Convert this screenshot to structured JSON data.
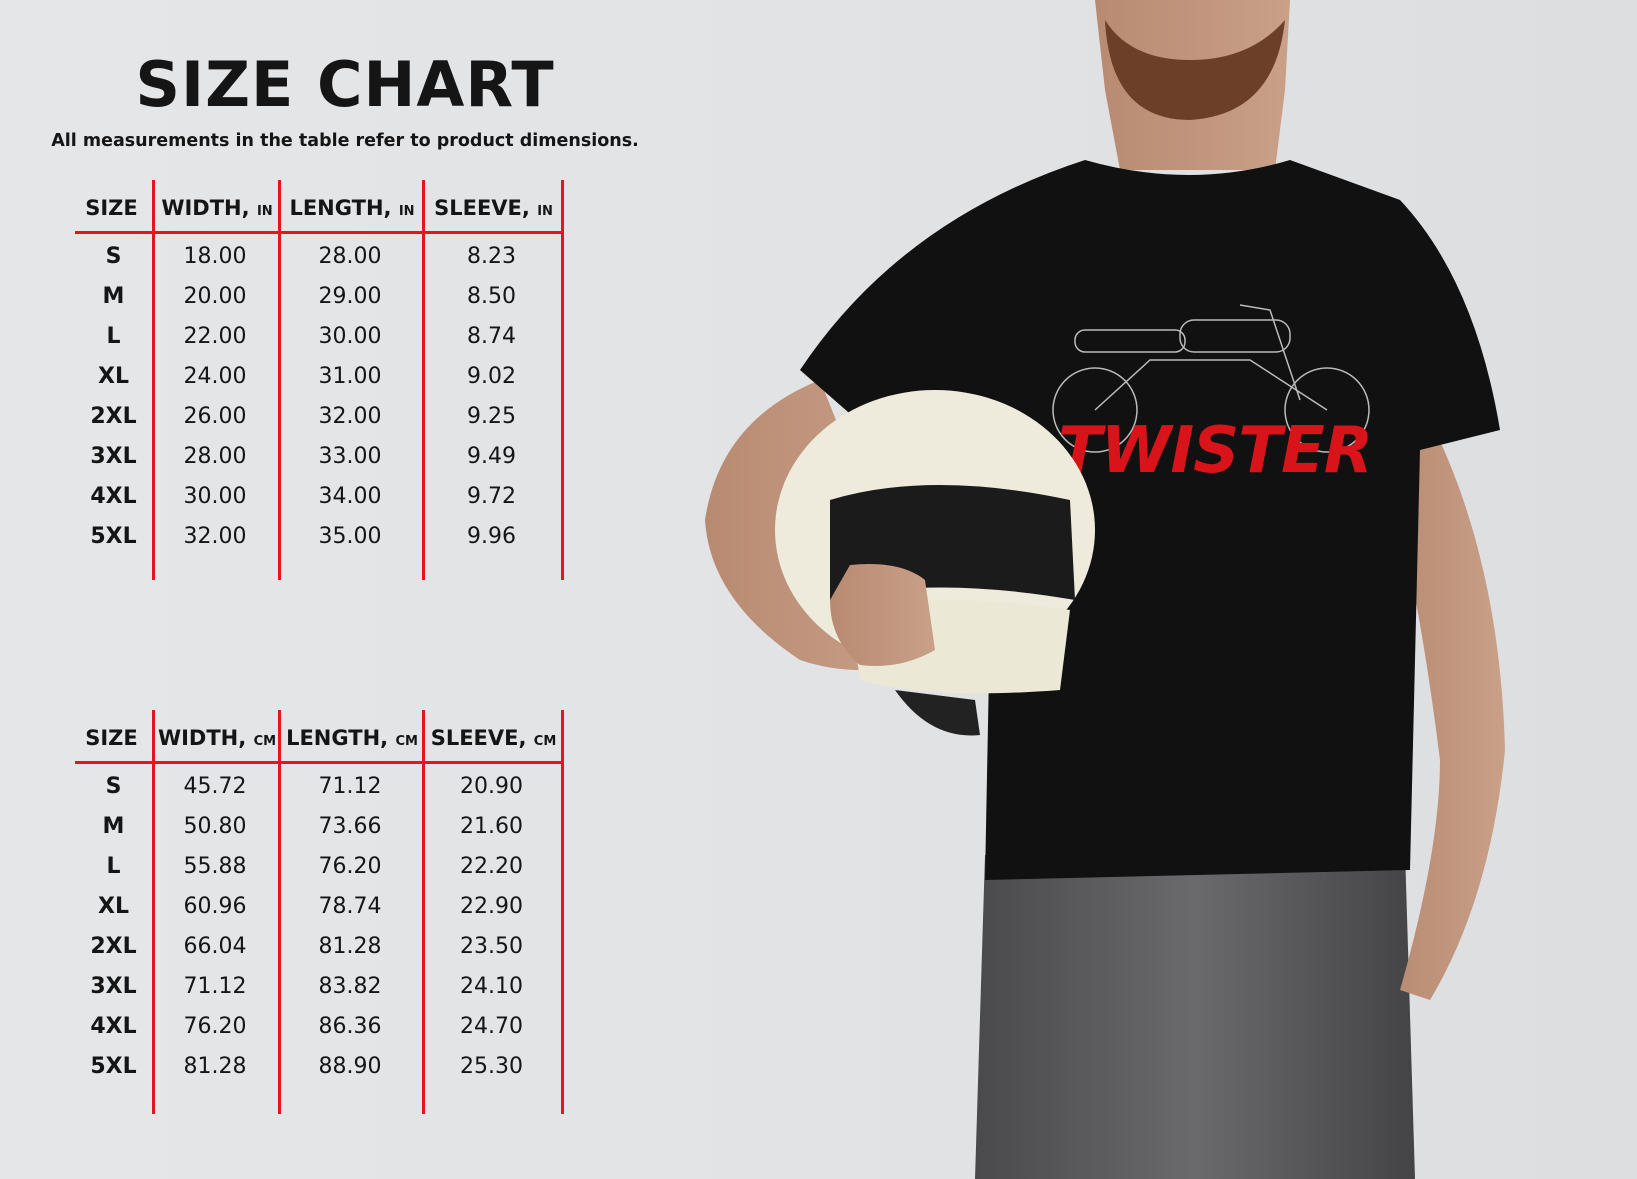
{
  "title": "SIZE CHART",
  "subtitle": "All measurements in the table refer to product dimensions.",
  "accent_color": "#e8141b",
  "tables": [
    {
      "headers": [
        {
          "label": "SIZE",
          "unit": ""
        },
        {
          "label": "WIDTH,",
          "unit": "IN"
        },
        {
          "label": "LENGTH,",
          "unit": "IN"
        },
        {
          "label": "SLEEVE,",
          "unit": "IN"
        }
      ],
      "rows": [
        [
          "S",
          "18.00",
          "28.00",
          "8.23"
        ],
        [
          "M",
          "20.00",
          "29.00",
          "8.50"
        ],
        [
          "L",
          "22.00",
          "30.00",
          "8.74"
        ],
        [
          "XL",
          "24.00",
          "31.00",
          "9.02"
        ],
        [
          "2XL",
          "26.00",
          "32.00",
          "9.25"
        ],
        [
          "3XL",
          "28.00",
          "33.00",
          "9.49"
        ],
        [
          "4XL",
          "30.00",
          "34.00",
          "9.72"
        ],
        [
          "5XL",
          "32.00",
          "35.00",
          "9.96"
        ]
      ]
    },
    {
      "headers": [
        {
          "label": "SIZE",
          "unit": ""
        },
        {
          "label": "WIDTH,",
          "unit": "CM"
        },
        {
          "label": "LENGTH,",
          "unit": "CM"
        },
        {
          "label": "SLEEVE,",
          "unit": "CM"
        }
      ],
      "rows": [
        [
          "S",
          "45.72",
          "71.12",
          "20.90"
        ],
        [
          "M",
          "50.80",
          "73.66",
          "21.60"
        ],
        [
          "L",
          "55.88",
          "76.20",
          "22.20"
        ],
        [
          "XL",
          "60.96",
          "78.74",
          "22.90"
        ],
        [
          "2XL",
          "66.04",
          "81.28",
          "23.50"
        ],
        [
          "3XL",
          "71.12",
          "83.82",
          "24.10"
        ],
        [
          "4XL",
          "76.20",
          "86.36",
          "24.70"
        ],
        [
          "5XL",
          "81.28",
          "88.90",
          "25.30"
        ]
      ]
    }
  ],
  "photo": {
    "shirt_graphic_text": "TWISTER",
    "shirt_graphic_color": "#d8141a"
  }
}
